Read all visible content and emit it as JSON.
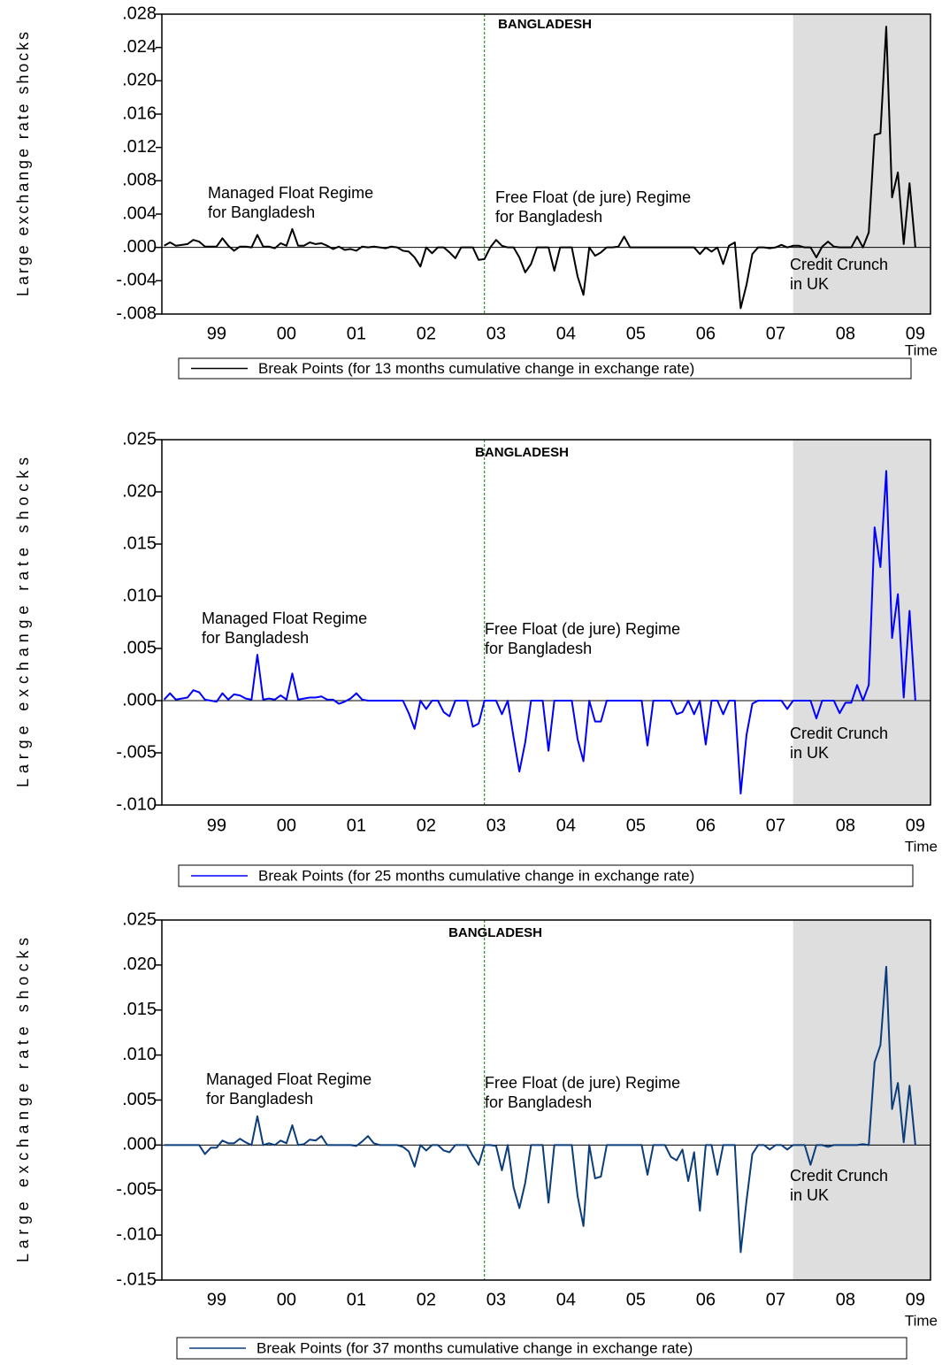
{
  "chart_data": [
    {
      "type": "line",
      "title": "BANGLADESH",
      "ylabel": "Large exchange rate shocks",
      "xlabel": "Time",
      "annotations": [
        [
          "Managed Float Regime",
          "for Bangladesh"
        ],
        [
          "Free Float (de jure) Regime",
          "for Bangladesh"
        ],
        [
          "Credit Crunch",
          "in UK"
        ]
      ],
      "vline": 55,
      "shade_from": 108,
      "zero_line": true,
      "categories": [
        null,
        null,
        null,
        null,
        null,
        null,
        null,
        null,
        null,
        "99",
        null,
        null,
        null,
        null,
        null,
        null,
        null,
        null,
        null,
        null,
        null,
        "00",
        null,
        null,
        null,
        null,
        null,
        null,
        null,
        null,
        null,
        null,
        null,
        "01",
        null,
        null,
        null,
        null,
        null,
        null,
        null,
        null,
        null,
        null,
        null,
        "02",
        null,
        null,
        null,
        null,
        null,
        null,
        null,
        null,
        null,
        null,
        null,
        "03",
        null,
        null,
        null,
        null,
        null,
        null,
        null,
        null,
        null,
        null,
        null,
        "04",
        null,
        null,
        null,
        null,
        null,
        null,
        null,
        null,
        null,
        null,
        null,
        "05",
        null,
        null,
        null,
        null,
        null,
        null,
        null,
        null,
        null,
        null,
        null,
        "06",
        null,
        null,
        null,
        null,
        null,
        null,
        null,
        null,
        null,
        null,
        null,
        "07",
        null,
        null,
        null,
        null,
        null,
        null,
        null,
        null,
        null,
        null,
        null,
        "08",
        null,
        null,
        null,
        null,
        null,
        null,
        null,
        null,
        null,
        null,
        null,
        "09"
      ],
      "series": [
        {
          "name": "Break Points (for 13 months cumulative change in exchange rate)",
          "color": "#000000",
          "values": [
            0.0002,
            0.0006,
            0.0002,
            0.0003,
            0.0004,
            0.0009,
            0.0007,
            0.0001,
            0.0001,
            0.0001,
            0.0011,
            0.0002,
            -0.0004,
            0.0001,
            0.0001,
            0,
            0.0015,
            0.0001,
            0.0001,
            -0.0001,
            0.0005,
            0.0002,
            0.0022,
            0.0002,
            0.0002,
            0.0006,
            0.0004,
            0.0005,
            0.0002,
            -0.0002,
            0.0001,
            -0.0003,
            -0.0002,
            -0.0004,
            0.0001,
            0,
            0.0001,
            0,
            -0.0001,
            0.0001,
            0,
            -0.0004,
            -0.0005,
            -0.0012,
            -0.0023,
            0,
            -0.0007,
            0,
            0,
            -0.0006,
            -0.0013,
            0,
            0,
            0,
            -0.0015,
            -0.0014,
            0,
            0.0009,
            0.0002,
            0,
            0,
            -0.0012,
            -0.003,
            -0.002,
            0,
            0,
            0,
            -0.0028,
            0,
            0,
            0,
            -0.0035,
            -0.0057,
            0,
            -0.001,
            -0.0006,
            0,
            0,
            0.0001,
            0.0013,
            0,
            0,
            0,
            0,
            0,
            0,
            0,
            0,
            0,
            0,
            0,
            0,
            -0.0008,
            0,
            -0.0005,
            0,
            -0.002,
            0.0002,
            0.0006,
            -0.0073,
            -0.0045,
            -0.0008,
            0,
            0,
            -0.0001,
            0,
            0.0003,
            0,
            0.0002,
            0.0002,
            0,
            0,
            -0.0012,
            0.0001,
            0.0007,
            0.0001,
            0,
            0,
            0,
            0.0013,
            0,
            0.0018,
            0.0135,
            0.0137,
            0.0265,
            0.006,
            0.009,
            0.0004,
            0.0077,
            0
          ]
        }
      ],
      "ylim": [
        -0.008,
        0.028
      ],
      "yticks": [
        {
          "value": -0.008,
          "label": "-.008"
        },
        {
          "value": -0.004,
          "label": "-.004"
        },
        {
          "value": 0,
          "label": ".000"
        },
        {
          "value": 0.004,
          "label": ".004"
        },
        {
          "value": 0.008,
          "label": ".008"
        },
        {
          "value": 0.012,
          "label": ".012"
        },
        {
          "value": 0.016,
          "label": ".016"
        },
        {
          "value": 0.02,
          "label": ".020"
        },
        {
          "value": 0.024,
          "label": ".024"
        },
        {
          "value": 0.028,
          "label": ".028"
        }
      ]
    },
    {
      "type": "line",
      "title": "BANGLADESH",
      "ylabel": "Large exchange rate shocks",
      "xlabel": "Time",
      "annotations": [
        [
          "Managed Float Regime",
          "for Bangladesh"
        ],
        [
          "Free Float (de jure) Regime",
          "for Bangladesh"
        ],
        [
          "Credit Crunch",
          "in UK"
        ]
      ],
      "vline": 55,
      "shade_from": 108,
      "zero_line": true,
      "categories": [
        null,
        null,
        null,
        null,
        null,
        null,
        null,
        null,
        null,
        "99",
        null,
        null,
        null,
        null,
        null,
        null,
        null,
        null,
        null,
        null,
        null,
        "00",
        null,
        null,
        null,
        null,
        null,
        null,
        null,
        null,
        null,
        null,
        null,
        "01",
        null,
        null,
        null,
        null,
        null,
        null,
        null,
        null,
        null,
        null,
        null,
        "02",
        null,
        null,
        null,
        null,
        null,
        null,
        null,
        null,
        null,
        null,
        null,
        "03",
        null,
        null,
        null,
        null,
        null,
        null,
        null,
        null,
        null,
        null,
        null,
        "04",
        null,
        null,
        null,
        null,
        null,
        null,
        null,
        null,
        null,
        null,
        null,
        "05",
        null,
        null,
        null,
        null,
        null,
        null,
        null,
        null,
        null,
        null,
        null,
        "06",
        null,
        null,
        null,
        null,
        null,
        null,
        null,
        null,
        null,
        null,
        null,
        "07",
        null,
        null,
        null,
        null,
        null,
        null,
        null,
        null,
        null,
        null,
        null,
        "08",
        null,
        null,
        null,
        null,
        null,
        null,
        null,
        null,
        null,
        null,
        null,
        "09"
      ],
      "series": [
        {
          "name": "Break Points (for 25 months cumulative change in exchange rate)",
          "color": "#0000ff",
          "values": [
            0.0001,
            0.0007,
            0.0001,
            0.0002,
            0.0003,
            0.001,
            0.0008,
            0.0001,
            0,
            -0.0001,
            0.0007,
            0.0001,
            0.0006,
            0.0005,
            0.0002,
            0.0001,
            0.0044,
            0.0001,
            0.0002,
            0.0001,
            0.0005,
            0.0001,
            0.0026,
            0.0001,
            0.0002,
            0.0003,
            0.0003,
            0.0004,
            0.0001,
            0.0001,
            -0.0003,
            -0.0001,
            0.0002,
            0.0007,
            0.0001,
            0,
            0,
            0,
            0,
            0,
            0,
            0,
            -0.0012,
            -0.0027,
            0,
            -0.0008,
            0,
            0,
            -0.0011,
            -0.0015,
            0,
            0,
            0,
            -0.0025,
            -0.0022,
            0,
            0,
            0,
            -0.0013,
            0,
            -0.0035,
            -0.0068,
            -0.004,
            0,
            0,
            0,
            -0.0048,
            0,
            0,
            0,
            0,
            -0.0037,
            -0.0058,
            0,
            -0.002,
            -0.002,
            0,
            0,
            0,
            0,
            0,
            0,
            0,
            -0.0043,
            0,
            0,
            0,
            0,
            -0.0013,
            -0.0011,
            0,
            -0.0013,
            0,
            -0.0042,
            0,
            0,
            -0.0013,
            0,
            0,
            -0.0089,
            -0.0033,
            -0.0003,
            0,
            0,
            0,
            0,
            0,
            -0.0008,
            0,
            0,
            0,
            0,
            -0.0017,
            0,
            0,
            0,
            -0.0012,
            -0.0002,
            -0.0002,
            0.0015,
            0,
            0.0015,
            0.0166,
            0.0128,
            0.022,
            0.006,
            0.0102,
            0.0003,
            0.0086,
            0
          ]
        }
      ],
      "ylim": [
        -0.01,
        0.025
      ],
      "yticks": [
        {
          "value": -0.01,
          "label": "-.010"
        },
        {
          "value": -0.005,
          "label": "-.005"
        },
        {
          "value": 0,
          "label": ".000"
        },
        {
          "value": 0.005,
          "label": ".005"
        },
        {
          "value": 0.01,
          "label": ".010"
        },
        {
          "value": 0.015,
          "label": ".015"
        },
        {
          "value": 0.02,
          "label": ".020"
        },
        {
          "value": 0.025,
          "label": ".025"
        }
      ]
    },
    {
      "type": "line",
      "title": "BANGLADESH",
      "ylabel": "Large exchange rate shocks",
      "xlabel": "Time",
      "annotations": [
        [
          "Managed Float Regime",
          "for Bangladesh"
        ],
        [
          "Free Float (de jure) Regime",
          "for Bangladesh"
        ],
        [
          "Credit Crunch",
          "in UK"
        ]
      ],
      "vline": 55,
      "shade_from": 108,
      "zero_line": true,
      "categories": [
        null,
        null,
        null,
        null,
        null,
        null,
        null,
        null,
        null,
        "99",
        null,
        null,
        null,
        null,
        null,
        null,
        null,
        null,
        null,
        null,
        null,
        "00",
        null,
        null,
        null,
        null,
        null,
        null,
        null,
        null,
        null,
        null,
        null,
        "01",
        null,
        null,
        null,
        null,
        null,
        null,
        null,
        null,
        null,
        null,
        null,
        "02",
        null,
        null,
        null,
        null,
        null,
        null,
        null,
        null,
        null,
        null,
        null,
        "03",
        null,
        null,
        null,
        null,
        null,
        null,
        null,
        null,
        null,
        null,
        null,
        "04",
        null,
        null,
        null,
        null,
        null,
        null,
        null,
        null,
        null,
        null,
        null,
        "05",
        null,
        null,
        null,
        null,
        null,
        null,
        null,
        null,
        null,
        null,
        null,
        "06",
        null,
        null,
        null,
        null,
        null,
        null,
        null,
        null,
        null,
        null,
        null,
        "07",
        null,
        null,
        null,
        null,
        null,
        null,
        null,
        null,
        null,
        null,
        null,
        "08",
        null,
        null,
        null,
        null,
        null,
        null,
        null,
        null,
        null,
        null,
        null,
        "09"
      ],
      "series": [
        {
          "name": "Break Points (for 37 months cumulative change in exchange rate)",
          "color": "#0b3d7a",
          "values": [
            0,
            0,
            0,
            0,
            0,
            0,
            0,
            -0.001,
            -0.0003,
            -0.0003,
            0.0005,
            0.0002,
            0.0002,
            0.0007,
            0.0003,
            0,
            0.0032,
            0,
            0.0002,
            0,
            0.0005,
            0.0002,
            0.0022,
            0,
            0.0001,
            0.0006,
            0.0005,
            0.001,
            0,
            0,
            0,
            0,
            0,
            -0.0001,
            0.0004,
            0.001,
            0.0002,
            0,
            0,
            0,
            0,
            -0.0002,
            -0.0007,
            -0.0024,
            0,
            -0.0006,
            0,
            0,
            -0.0006,
            -0.0008,
            0,
            0,
            0,
            -0.0012,
            -0.0022,
            0,
            0,
            -0.0001,
            -0.0028,
            0,
            -0.0047,
            -0.007,
            -0.0042,
            0,
            0,
            0,
            -0.0064,
            0,
            0,
            0,
            0,
            -0.0057,
            -0.009,
            0,
            -0.0037,
            -0.0035,
            0,
            0,
            0,
            0,
            0,
            0,
            0,
            -0.0033,
            0,
            0,
            0,
            -0.0013,
            -0.0017,
            -0.0005,
            -0.004,
            -0.0008,
            -0.0073,
            0,
            0,
            -0.0033,
            0,
            0,
            0,
            -0.0119,
            -0.0062,
            -0.001,
            0,
            0,
            -0.0005,
            0,
            0,
            -0.0005,
            0,
            0,
            0,
            -0.0022,
            0,
            0,
            -0.0002,
            0,
            0,
            0,
            0,
            0,
            0.0001,
            0,
            0.0092,
            0.0111,
            0.0198,
            0.004,
            0.0069,
            0.0003,
            0.0066,
            0
          ]
        }
      ],
      "ylim": [
        -0.015,
        0.025
      ],
      "yticks": [
        {
          "value": -0.015,
          "label": "-.015"
        },
        {
          "value": -0.01,
          "label": "-.010"
        },
        {
          "value": -0.005,
          "label": "-.005"
        },
        {
          "value": 0,
          "label": ".000"
        },
        {
          "value": 0.005,
          "label": ".005"
        },
        {
          "value": 0.01,
          "label": ".010"
        },
        {
          "value": 0.015,
          "label": ".015"
        },
        {
          "value": 0.02,
          "label": ".020"
        },
        {
          "value": 0.025,
          "label": ".025"
        }
      ]
    }
  ]
}
